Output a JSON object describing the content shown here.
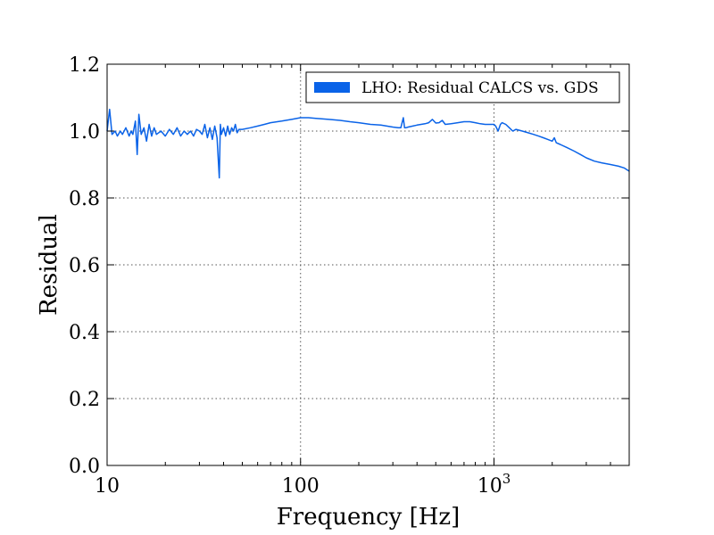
{
  "chart_data": {
    "type": "line",
    "xlabel": "Frequency [Hz]",
    "ylabel": "Residual",
    "xscale": "log",
    "xlim": [
      10,
      5000
    ],
    "ylim": [
      0.0,
      1.2
    ],
    "grid": true,
    "legend_position": "top-right",
    "x_ticks": [
      {
        "value": 10,
        "label": "10"
      },
      {
        "value": 100,
        "label": "100"
      },
      {
        "value": 1000,
        "label": "10",
        "exponent": "3"
      }
    ],
    "y_ticks": [
      {
        "value": 0.0,
        "label": "0.0"
      },
      {
        "value": 0.2,
        "label": "0.2"
      },
      {
        "value": 0.4,
        "label": "0.4"
      },
      {
        "value": 0.6,
        "label": "0.6"
      },
      {
        "value": 0.8,
        "label": "0.8"
      },
      {
        "value": 1.0,
        "label": "1.0"
      },
      {
        "value": 1.2,
        "label": "1.2"
      }
    ],
    "series": [
      {
        "name": "LHO: Residual CALCS vs. GDS",
        "color": "#0a63e8",
        "x": [
          10.0,
          10.3,
          10.6,
          11.0,
          11.3,
          11.7,
          12.0,
          12.5,
          13.0,
          13.3,
          13.6,
          14.0,
          14.3,
          14.6,
          15.0,
          15.5,
          16.0,
          16.5,
          17.0,
          17.5,
          18.0,
          19.0,
          20.0,
          21.0,
          22.0,
          23.0,
          24.0,
          25.0,
          26.0,
          27.0,
          28.0,
          29.0,
          30.0,
          31.0,
          32.0,
          33.0,
          34.0,
          35.0,
          36.0,
          37.0,
          38.0,
          38.5,
          39.0,
          40.0,
          41.0,
          42.0,
          43.0,
          44.0,
          45.0,
          46.0,
          47.0,
          48.0,
          50.0,
          55.0,
          60.0,
          65.0,
          70.0,
          80.0,
          90.0,
          100.0,
          110.0,
          120.0,
          140.0,
          160.0,
          180.0,
          200.0,
          230.0,
          260.0,
          300.0,
          320.0,
          330.0,
          340.0,
          345.0,
          350.0,
          360.0,
          380.0,
          400.0,
          420.0,
          440.0,
          460.0,
          480.0,
          500.0,
          520.0,
          540.0,
          560.0,
          600.0,
          650.0,
          700.0,
          750.0,
          800.0,
          850.0,
          900.0,
          950.0,
          1000.0,
          1020.0,
          1050.0,
          1080.0,
          1100.0,
          1150.0,
          1200.0,
          1250.0,
          1300.0,
          1400.0,
          1500.0,
          1600.0,
          1700.0,
          1800.0,
          1900.0,
          2000.0,
          2050.0,
          2100.0,
          2200.0,
          2400.0,
          2600.0,
          2800.0,
          3000.0,
          3300.0,
          3600.0,
          4000.0,
          4400.0,
          4700.0,
          5000.0
        ],
        "y": [
          1.0,
          1.065,
          0.99,
          1.0,
          0.985,
          1.0,
          0.99,
          1.01,
          0.985,
          1.0,
          0.99,
          1.03,
          0.93,
          1.05,
          0.99,
          1.01,
          0.97,
          1.02,
          0.985,
          1.01,
          0.99,
          1.0,
          0.985,
          1.005,
          0.99,
          1.01,
          0.985,
          1.0,
          0.99,
          1.0,
          0.985,
          1.005,
          1.0,
          0.99,
          1.02,
          0.98,
          1.01,
          0.975,
          1.015,
          0.98,
          0.86,
          1.02,
          0.99,
          1.01,
          0.985,
          1.015,
          0.99,
          1.01,
          1.0,
          1.02,
          0.995,
          1.005,
          1.005,
          1.01,
          1.015,
          1.02,
          1.025,
          1.03,
          1.035,
          1.04,
          1.04,
          1.038,
          1.035,
          1.032,
          1.028,
          1.025,
          1.02,
          1.018,
          1.012,
          1.01,
          1.01,
          1.04,
          1.01,
          1.01,
          1.012,
          1.015,
          1.018,
          1.02,
          1.022,
          1.025,
          1.035,
          1.024,
          1.025,
          1.032,
          1.02,
          1.022,
          1.025,
          1.028,
          1.028,
          1.025,
          1.022,
          1.02,
          1.02,
          1.02,
          1.015,
          1.0,
          1.02,
          1.025,
          1.02,
          1.01,
          1.0,
          1.005,
          1.0,
          0.995,
          0.99,
          0.985,
          0.98,
          0.975,
          0.97,
          0.98,
          0.965,
          0.96,
          0.95,
          0.94,
          0.93,
          0.92,
          0.91,
          0.905,
          0.9,
          0.895,
          0.89,
          0.88
        ]
      }
    ]
  }
}
